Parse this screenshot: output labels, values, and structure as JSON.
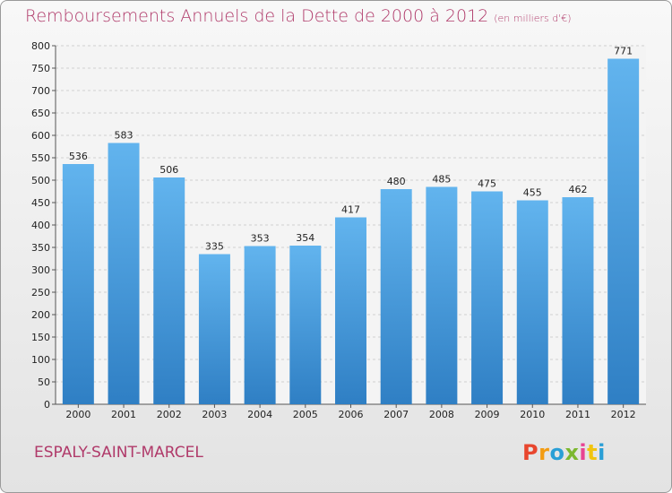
{
  "title": "Remboursements Annuels de la Dette de 2000 à 2012",
  "subtitle": "(en milliers d'€)",
  "commune": "ESPALY-SAINT-MARCEL",
  "logo": [
    "P",
    "r",
    "o",
    "x",
    "i",
    "t",
    "i"
  ],
  "logo_colors": [
    "#e8462e",
    "#f39c12",
    "#2a9fd6",
    "#7cb82f",
    "#e84393",
    "#f1c40f",
    "#2a9fd6"
  ],
  "colors": {
    "bar": "#3f97dd",
    "bar_top": "#62b4ee",
    "title": "#b03a6a"
  },
  "chart_data": {
    "type": "bar",
    "categories": [
      "2000",
      "2001",
      "2002",
      "2003",
      "2004",
      "2005",
      "2006",
      "2007",
      "2008",
      "2009",
      "2010",
      "2011",
      "2012"
    ],
    "values": [
      536,
      583,
      506,
      335,
      353,
      354,
      417,
      480,
      485,
      475,
      455,
      462,
      771
    ],
    "ylim": [
      0,
      800
    ],
    "yticks": [
      0,
      50,
      100,
      150,
      200,
      250,
      300,
      350,
      400,
      450,
      500,
      550,
      600,
      650,
      700,
      750,
      800
    ],
    "grid": true
  }
}
